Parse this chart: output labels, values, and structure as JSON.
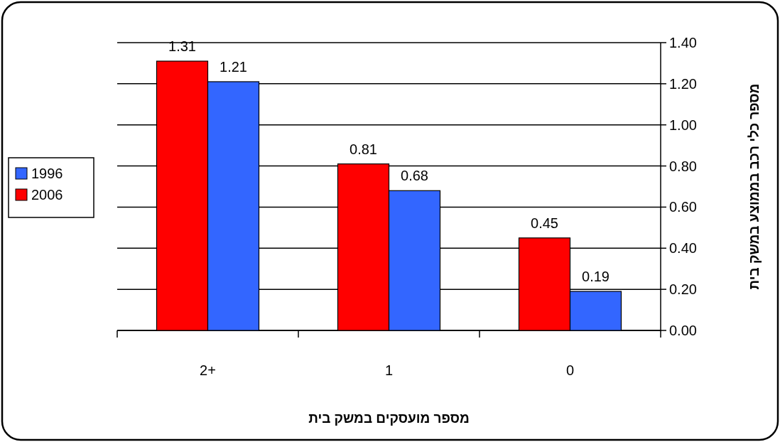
{
  "chart_data": {
    "type": "bar",
    "categories": [
      "2+",
      "1",
      "0"
    ],
    "series": [
      {
        "name": "2006",
        "color": "#ff0000",
        "values": [
          1.31,
          0.81,
          0.45
        ]
      },
      {
        "name": "1996",
        "color": "#3366ff",
        "values": [
          1.21,
          0.68,
          0.19
        ]
      }
    ],
    "xlabel": "מספר מועסקים במשק בית",
    "ylabel": "מספר כלי רכב בממוצע במשק בית",
    "ylim": [
      0,
      1.4
    ],
    "yticks": [
      {
        "value": 0,
        "label": "0.00"
      },
      {
        "value": 0.2,
        "label": "0.20"
      },
      {
        "value": 0.4,
        "label": "0.40"
      },
      {
        "value": 0.6,
        "label": "0.60"
      },
      {
        "value": 0.8,
        "label": "0.80"
      },
      {
        "value": 1.0,
        "label": "1.00"
      },
      {
        "value": 1.2,
        "label": "1.20"
      },
      {
        "value": 1.4,
        "label": "1.40"
      }
    ],
    "grid": "y",
    "legend": "left",
    "data_labels": true
  }
}
